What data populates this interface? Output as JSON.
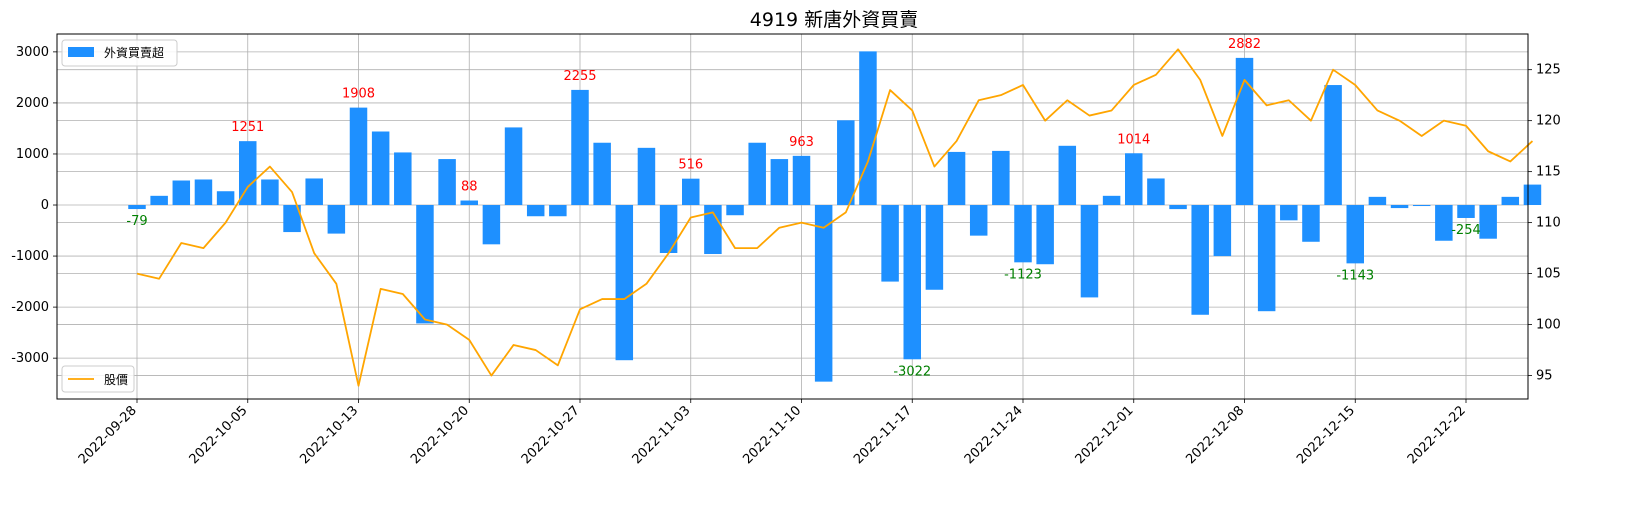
{
  "chart_data": {
    "type": "bar+line",
    "title": "4919 新唐外資買賣",
    "bar_color": "#1e90ff",
    "line_color": "#ffa500",
    "positive_label_color": "#ff0000",
    "negative_label_color": "#008000",
    "y_left_lim": [
      -3800,
      3350
    ],
    "y_left_ticks": [
      -3000,
      -2000,
      -1000,
      0,
      1000,
      2000,
      3000
    ],
    "y_right_lim": [
      92.7,
      128.5
    ],
    "y_right_ticks": [
      95,
      100,
      105,
      110,
      115,
      120,
      125
    ],
    "x_tick_labels": [
      "2022-09-28",
      "2022-10-05",
      "2022-10-13",
      "2022-10-20",
      "2022-10-27",
      "2022-11-03",
      "2022-11-10",
      "2022-11-17",
      "2022-11-24",
      "2022-12-01",
      "2022-12-08",
      "2022-12-15",
      "2022-12-22"
    ],
    "grid": true,
    "legend": [
      {
        "name": "外資買賣超",
        "kind": "bar",
        "placement": "upper-left"
      },
      {
        "name": "股價",
        "kind": "line",
        "placement": "lower-left"
      }
    ],
    "series": [
      {
        "name": "外資買賣超",
        "kind": "bar",
        "axis": "left",
        "values": [
          -79,
          180,
          480,
          500,
          270,
          1251,
          500,
          -530,
          520,
          -560,
          1908,
          1440,
          1030,
          -2320,
          900,
          88,
          -770,
          1520,
          -220,
          -220,
          2255,
          1220,
          -3040,
          1120,
          -940,
          516,
          -960,
          -200,
          1220,
          900,
          963,
          -3460,
          1660,
          3010,
          -1500,
          -3022,
          -1660,
          1040,
          -600,
          1060,
          -1123,
          -1160,
          1160,
          -1810,
          180,
          1014,
          520,
          -80,
          -2150,
          -1000,
          2882,
          -2080,
          -300,
          -720,
          2350,
          -1143,
          160,
          -60,
          -20,
          -700,
          -254,
          -660,
          160,
          400
        ]
      },
      {
        "name": "股價",
        "kind": "line",
        "axis": "right",
        "values": [
          105,
          104.5,
          108,
          107.5,
          110,
          113.5,
          115.5,
          113,
          107,
          104,
          94,
          103.5,
          103,
          100.5,
          100,
          98.5,
          95,
          98,
          97.5,
          96,
          101.5,
          102.5,
          102.5,
          104,
          107,
          110.5,
          111,
          107.5,
          107.5,
          109.5,
          110,
          109.5,
          111,
          116,
          123,
          121,
          115.5,
          118,
          122,
          122.5,
          123.5,
          120,
          122,
          120.5,
          121,
          123.5,
          124.5,
          127,
          124,
          118.5,
          124,
          121.5,
          122,
          120,
          125,
          123.5,
          121,
          120,
          118.5,
          120,
          119.5,
          117,
          116,
          118
        ]
      }
    ],
    "annotations": [
      {
        "index": 0,
        "text": "-79"
      },
      {
        "index": 5,
        "text": "1251"
      },
      {
        "index": 10,
        "text": "1908"
      },
      {
        "index": 15,
        "text": "88"
      },
      {
        "index": 20,
        "text": "2255"
      },
      {
        "index": 25,
        "text": "516"
      },
      {
        "index": 30,
        "text": "963"
      },
      {
        "index": 35,
        "text": "-3022"
      },
      {
        "index": 40,
        "text": "-1123"
      },
      {
        "index": 45,
        "text": "1014"
      },
      {
        "index": 50,
        "text": "2882"
      },
      {
        "index": 55,
        "text": "-1143"
      },
      {
        "index": 60,
        "text": "-254"
      }
    ]
  }
}
